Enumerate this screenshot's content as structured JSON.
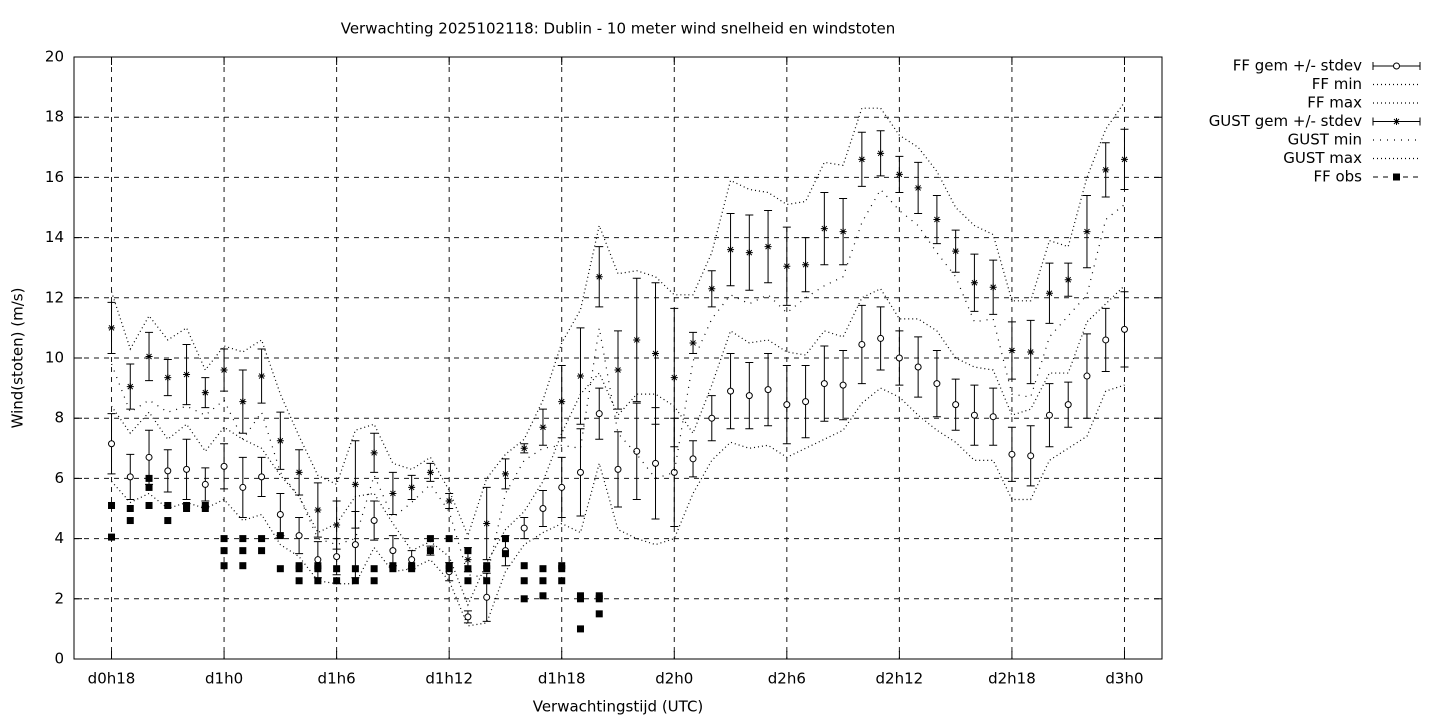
{
  "chart_data": {
    "type": "errorbar",
    "title": "Verwachting 2025102118: Dublin - 10 meter wind snelheid en windstoten",
    "x_label": "Verwachtingstijd (UTC)",
    "y_label": "Wind(stoten) (m/s)",
    "xlim": [
      16,
      74
    ],
    "ylim": [
      0,
      20
    ],
    "xticks": [
      {
        "value": 18,
        "label": "d0h18"
      },
      {
        "value": 24,
        "label": "d1h0"
      },
      {
        "value": 30,
        "label": "d1h6"
      },
      {
        "value": 36,
        "label": "d1h12"
      },
      {
        "value": 42,
        "label": "d1h18"
      },
      {
        "value": 48,
        "label": "d2h0"
      },
      {
        "value": 54,
        "label": "d2h6"
      },
      {
        "value": 60,
        "label": "d2h12"
      },
      {
        "value": 66,
        "label": "d2h18"
      },
      {
        "value": 72,
        "label": "d3h0"
      }
    ],
    "yticks": [
      0,
      2,
      4,
      6,
      8,
      10,
      12,
      14,
      16,
      18,
      20
    ],
    "grid": true,
    "legend": "outside-top-right",
    "x": [
      18,
      19,
      20,
      21,
      22,
      23,
      24,
      25,
      26,
      27,
      28,
      29,
      30,
      31,
      32,
      33,
      34,
      35,
      36,
      37,
      38,
      39,
      40,
      41,
      42,
      43,
      44,
      45,
      46,
      47,
      48,
      49,
      50,
      51,
      52,
      53,
      54,
      55,
      56,
      57,
      58,
      59,
      60,
      61,
      62,
      63,
      64,
      65,
      66,
      67,
      68,
      69,
      70,
      71,
      72
    ],
    "series": [
      {
        "name": "FF gem +/- stdev",
        "color": "#000000",
        "style": "errorbar",
        "marker": "circle",
        "values": [
          7.15,
          6.05,
          6.7,
          6.25,
          6.3,
          5.8,
          6.4,
          5.7,
          6.05,
          4.8,
          4.1,
          3.3,
          3.4,
          3.8,
          4.6,
          3.6,
          3.3,
          3.6,
          2.9,
          1.4,
          2.05,
          3.6,
          4.35,
          5.0,
          5.7,
          6.2,
          8.15,
          6.3,
          6.9,
          6.5,
          6.2,
          6.65,
          8.0,
          8.9,
          8.75,
          8.95,
          8.45,
          8.55,
          9.15,
          9.1,
          10.45,
          10.65,
          10.0,
          9.7,
          9.15,
          8.45,
          8.1,
          8.05,
          6.8,
          6.75,
          8.1,
          8.45,
          9.4,
          10.6,
          10.95
        ],
        "errors": [
          1.0,
          0.75,
          0.9,
          0.7,
          1.0,
          0.55,
          0.75,
          1.0,
          0.65,
          0.7,
          0.6,
          0.6,
          0.6,
          1.1,
          0.65,
          0.5,
          0.3,
          0.15,
          0.3,
          0.2,
          0.8,
          0.5,
          0.35,
          0.6,
          1.0,
          1.45,
          0.85,
          1.25,
          1.6,
          1.85,
          1.8,
          0.6,
          0.75,
          1.25,
          1.1,
          1.2,
          1.3,
          1.2,
          1.25,
          1.15,
          1.3,
          1.05,
          0.9,
          1.0,
          1.1,
          0.85,
          1.0,
          0.95,
          0.9,
          1.0,
          1.05,
          0.75,
          1.4,
          1.05,
          1.25
        ]
      },
      {
        "name": "FF min",
        "color": "#000000",
        "style": "dotted",
        "values": [
          5.9,
          5.2,
          5.5,
          5.0,
          5.2,
          5.0,
          5.3,
          4.6,
          4.8,
          3.8,
          3.4,
          2.6,
          2.5,
          2.5,
          3.7,
          2.9,
          3.0,
          3.3,
          2.6,
          1.1,
          1.2,
          2.9,
          3.8,
          4.2,
          4.5,
          4.2,
          6.5,
          4.3,
          4.0,
          3.8,
          4.0,
          5.5,
          6.6,
          7.2,
          7.0,
          7.1,
          6.7,
          7.0,
          7.3,
          7.6,
          8.5,
          9.0,
          8.7,
          8.1,
          7.6,
          7.2,
          6.6,
          6.6,
          5.3,
          5.3,
          6.6,
          7.0,
          7.4,
          8.9,
          9.1
        ]
      },
      {
        "name": "FF max",
        "color": "#000000",
        "style": "dotted",
        "values": [
          8.4,
          7.5,
          8.2,
          7.3,
          7.8,
          6.9,
          7.7,
          7.3,
          7.0,
          6.1,
          5.4,
          4.2,
          4.5,
          5.4,
          5.5,
          4.5,
          3.6,
          3.9,
          3.4,
          1.8,
          3.2,
          4.3,
          4.9,
          5.9,
          7.5,
          8.8,
          9.5,
          8.1,
          8.8,
          8.8,
          8.4,
          7.5,
          9.1,
          10.9,
          10.5,
          10.6,
          10.2,
          10.1,
          10.9,
          10.7,
          12.0,
          12.3,
          11.3,
          11.3,
          10.9,
          10.0,
          9.7,
          9.6,
          8.1,
          8.3,
          9.5,
          9.5,
          11.2,
          11.8,
          12.4
        ]
      },
      {
        "name": "GUST gem +/- stdev",
        "color": "#000000",
        "style": "errorbar",
        "marker": "asterisk",
        "values": [
          11.0,
          9.05,
          10.05,
          9.35,
          9.45,
          8.85,
          9.6,
          8.55,
          9.4,
          7.25,
          6.2,
          4.95,
          4.45,
          5.8,
          6.85,
          5.5,
          5.7,
          6.2,
          5.25,
          3.3,
          4.5,
          6.15,
          7.0,
          7.7,
          8.55,
          9.4,
          12.7,
          9.6,
          10.6,
          10.15,
          9.35,
          10.5,
          12.3,
          13.6,
          13.5,
          13.7,
          13.05,
          13.1,
          14.3,
          14.2,
          16.6,
          16.8,
          16.1,
          15.65,
          14.6,
          13.55,
          12.5,
          12.35,
          10.25,
          10.2,
          12.15,
          12.6,
          14.2,
          16.25,
          16.6
        ],
        "errors": [
          0.85,
          0.75,
          0.8,
          0.6,
          1.0,
          0.5,
          0.7,
          1.05,
          0.9,
          0.95,
          0.75,
          0.9,
          0.8,
          1.45,
          0.65,
          0.7,
          0.4,
          0.3,
          0.25,
          0.4,
          1.2,
          0.5,
          0.15,
          0.6,
          1.2,
          1.6,
          1.0,
          1.3,
          2.05,
          2.35,
          2.3,
          0.35,
          0.6,
          1.2,
          1.25,
          1.2,
          1.3,
          0.9,
          1.2,
          1.1,
          0.9,
          0.75,
          0.6,
          0.85,
          0.8,
          0.7,
          0.95,
          0.9,
          0.95,
          1.05,
          1.0,
          0.55,
          1.2,
          0.9,
          1.0
        ]
      },
      {
        "name": "GUST min",
        "color": "#000000",
        "style": "dotted-sparse",
        "values": [
          9.8,
          8.2,
          8.6,
          8.2,
          8.4,
          8.1,
          8.6,
          7.3,
          8.2,
          6.2,
          5.4,
          4.0,
          3.8,
          4.0,
          6.1,
          4.7,
          5.2,
          5.8,
          4.9,
          2.8,
          2.7,
          5.5,
          6.6,
          7.0,
          7.1,
          7.0,
          11.0,
          7.5,
          6.8,
          6.0,
          6.2,
          9.9,
          11.3,
          12.1,
          11.8,
          12.1,
          11.5,
          12.0,
          12.4,
          12.7,
          14.5,
          15.6,
          14.9,
          14.4,
          13.5,
          12.7,
          11.2,
          11.3,
          8.8,
          8.7,
          10.7,
          11.4,
          12.1,
          14.6,
          15.1
        ]
      },
      {
        "name": "GUST max",
        "color": "#000000",
        "style": "dotted",
        "values": [
          12.2,
          10.3,
          11.4,
          10.6,
          11.0,
          9.6,
          10.4,
          10.2,
          10.6,
          8.8,
          7.4,
          6.1,
          5.8,
          7.6,
          7.8,
          6.5,
          6.3,
          6.7,
          5.6,
          4.1,
          6.0,
          6.8,
          7.3,
          8.6,
          10.5,
          11.6,
          14.4,
          12.8,
          12.9,
          12.7,
          12.1,
          12.1,
          13.5,
          15.9,
          15.6,
          15.5,
          15.1,
          15.2,
          16.5,
          16.4,
          18.3,
          18.3,
          17.4,
          17.0,
          16.2,
          15.0,
          14.4,
          14.1,
          11.9,
          11.9,
          13.9,
          13.7,
          16.0,
          17.6,
          18.5
        ]
      },
      {
        "name": "FF obs",
        "color": "#000000",
        "style": "points",
        "marker": "square",
        "x": [
          18,
          18,
          19,
          19,
          20,
          20,
          20,
          21,
          21,
          22,
          22,
          23,
          23,
          24,
          24,
          24,
          25,
          25,
          25,
          26,
          26,
          27,
          27,
          28,
          28,
          28,
          29,
          29,
          29,
          30,
          30,
          31,
          31,
          32,
          32,
          33,
          33,
          34,
          34,
          35,
          35,
          36,
          36,
          36,
          37,
          37,
          37,
          38,
          38,
          38,
          39,
          39,
          40,
          40,
          40,
          41,
          41,
          41,
          42,
          42,
          42,
          43,
          43,
          43,
          44,
          44,
          44
        ],
        "values": [
          5.1,
          4.05,
          5.0,
          4.6,
          6.0,
          5.7,
          5.1,
          5.1,
          4.6,
          5.1,
          5.0,
          5.1,
          5.0,
          4.0,
          3.6,
          3.1,
          4.0,
          3.6,
          3.1,
          4.0,
          3.6,
          4.1,
          3.0,
          3.1,
          3.0,
          2.6,
          3.1,
          3.0,
          2.6,
          3.0,
          2.6,
          3.0,
          2.6,
          3.0,
          2.6,
          3.1,
          3.0,
          3.1,
          3.0,
          4.0,
          3.6,
          4.0,
          3.1,
          3.0,
          3.6,
          3.0,
          2.6,
          3.1,
          3.0,
          2.6,
          4.0,
          3.5,
          3.1,
          2.6,
          2.0,
          3.0,
          2.6,
          2.1,
          3.1,
          3.0,
          2.6,
          2.1,
          2.0,
          1.0,
          2.1,
          2.0,
          1.5
        ]
      }
    ]
  }
}
